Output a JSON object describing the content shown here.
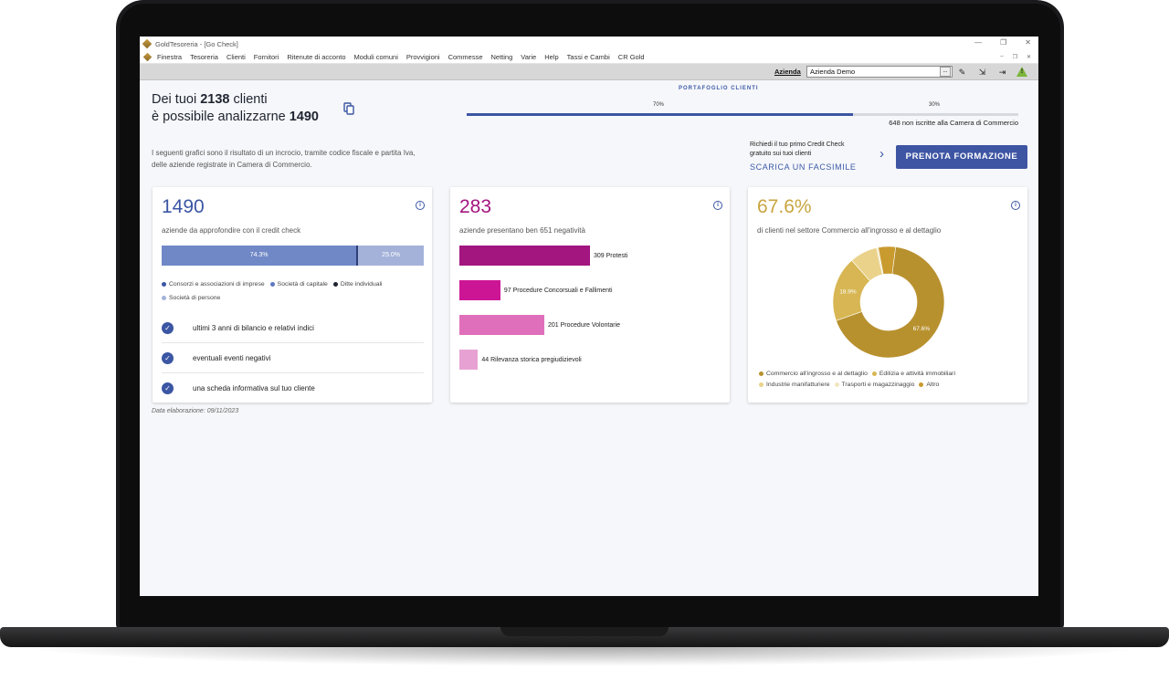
{
  "window": {
    "title": "GoldTesoreria - [Go Check]",
    "controls": [
      "—",
      "❐",
      "✕"
    ],
    "mdi_controls": [
      "–",
      "❐",
      "✕"
    ]
  },
  "menu": {
    "items": [
      "Finestra",
      "Tesoreria",
      "Clienti",
      "Fornitori",
      "Ritenute di acconto",
      "Moduli comuni",
      "Provvigioni",
      "Commesse",
      "Netting",
      "Varie",
      "Help",
      "Tassi e Cambi",
      "CR Gold"
    ]
  },
  "toolbar": {
    "azienda_label": "Azienda",
    "azienda_value": "Azienda Demo",
    "browse_label": "..."
  },
  "header": {
    "line1_pre": "Dei tuoi ",
    "total_clients": "2138",
    "line1_post": " clienti",
    "line2_pre": "è possibile analizzarne ",
    "analyzable": "1490"
  },
  "portfolio": {
    "label": "PORTAFOGLIO CLIENTI",
    "pct_registered": "70%",
    "pct_not_registered": "30%",
    "fill_fraction": 0.7,
    "note": "648 non iscritte alla Camera di Commercio"
  },
  "intro": {
    "line1": "I seguenti grafici sono il risultato di un incrocio, tramite codice fiscale e partita Iva,",
    "line2": "delle aziende registrate in Camera di Commercio."
  },
  "credit_check": {
    "text1": "Richiedi il tuo primo Credit Check",
    "text2": "gratuito sui tuoi clienti",
    "link": "SCARICA UN FACSIMILE",
    "button": "PRENOTA FORMAZIONE"
  },
  "card1": {
    "big": "1490",
    "sub": "aziende da approfondire con il credit check",
    "segments": [
      {
        "label": "74.3%",
        "value": 74.3,
        "color": "#7088c6"
      },
      {
        "label": "",
        "value": 0.7,
        "color": "#2f3f7a"
      },
      {
        "label": "25.0%",
        "value": 25.0,
        "color": "#a4b2da"
      }
    ],
    "legend": [
      {
        "label": "Consorzi e associazioni di imprese",
        "color": "#3b56a3"
      },
      {
        "label": "Società di capitale",
        "color": "#5f78c0"
      },
      {
        "label": "Ditte individuali",
        "color": "#1f2430"
      },
      {
        "label": "Società di persone",
        "color": "#a4b2da"
      }
    ],
    "checks": [
      "ultimi 3 anni di bilancio e relativi indici",
      "eventuali eventi negativi",
      "una scheda informativa sul tuo cliente"
    ]
  },
  "card2": {
    "big": "283",
    "sub": "aziende presentano ben 651 negatività",
    "bars": [
      {
        "label": "309 Protesti",
        "value": 309,
        "color": "#a3157f"
      },
      {
        "label": "97 Procedure Concorsuali e Fallimenti",
        "value": 97,
        "color": "#cc1594"
      },
      {
        "label": "201 Procedure Volontarie",
        "value": 201,
        "color": "#e06fbb"
      },
      {
        "label": "44 Rilevanza storica pregiudizievoli",
        "value": 44,
        "color": "#e7a2d3"
      }
    ]
  },
  "card3": {
    "big": "67.6%",
    "sub": "di clienti nel settore Commercio all'ingrosso e al dettaglio",
    "slices": [
      {
        "name": "Commercio all'ingrosso e al dettaglio",
        "value": 67.6,
        "color": "#b8912f",
        "label": "67.6%"
      },
      {
        "name": "Edilizia e attività immobiliari",
        "value": 18.9,
        "color": "#d7b653",
        "label": "18.9%"
      },
      {
        "name": "Industrie manifatturiere",
        "value": 8.0,
        "color": "#ead28b",
        "label": ""
      },
      {
        "name": "Trasporti e magazzinaggio",
        "value": 0.5,
        "color": "#f2e6c2",
        "label": ""
      },
      {
        "name": "Altro",
        "value": 5.0,
        "color": "#c99a2e",
        "label": ""
      }
    ]
  },
  "footer": {
    "date_note": "Data elaborazione: 09/11/2023"
  },
  "colors": {
    "accent": "#3b56a3",
    "magenta": "#a3157f",
    "gold": "#c9a53f"
  },
  "chart_data": [
    {
      "type": "bar",
      "categories": [
        "Consorzi e associazioni di imprese",
        "Società di capitale",
        "Ditte individuali",
        "Società di persone"
      ],
      "values": [
        0,
        74.3,
        0.7,
        25.0
      ],
      "title": "1490",
      "xlabel": "",
      "ylabel": ""
    },
    {
      "type": "bar",
      "categories": [
        "Protesti",
        "Procedure Concorsuali e Fallimenti",
        "Procedure Volontarie",
        "Rilevanza storica pregiudizievoli"
      ],
      "values": [
        309,
        97,
        201,
        44
      ],
      "title": "283",
      "xlabel": "",
      "ylabel": ""
    },
    {
      "type": "pie",
      "categories": [
        "Commercio all'ingrosso e al dettaglio",
        "Edilizia e attività immobiliari",
        "Industrie manifatturiere",
        "Trasporti e magazzinaggio",
        "Altro"
      ],
      "values": [
        67.6,
        18.9,
        8.0,
        0.5,
        5.0
      ],
      "title": "67.6%",
      "legend": "bottom"
    }
  ]
}
